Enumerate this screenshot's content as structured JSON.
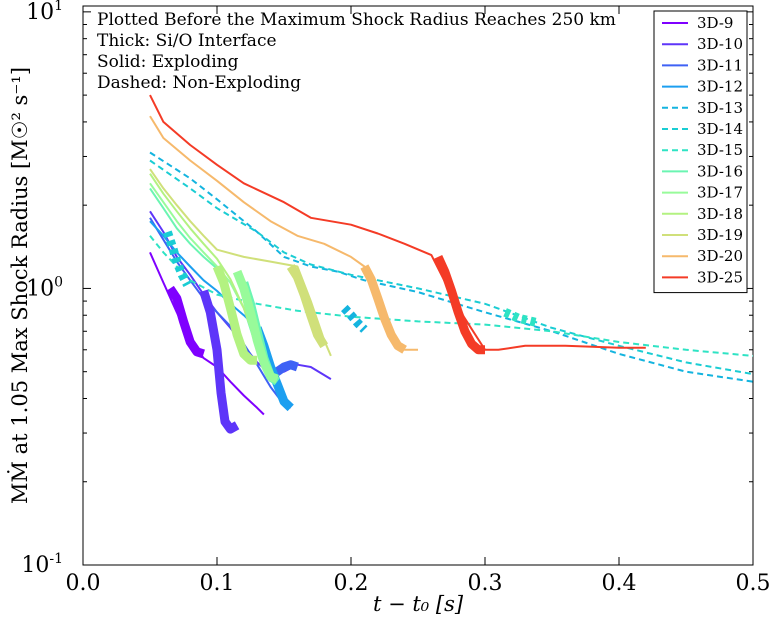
{
  "chart_data": {
    "type": "line",
    "xlabel": "t − t₀ [s]",
    "ylabel": "MṀ at 1.05 Max Shock Radius [M☉² s⁻¹]",
    "xlim": [
      0.0,
      0.5
    ],
    "ylim": [
      0.1,
      10.5
    ],
    "yscale": "log",
    "xticks": [
      "0.0",
      "0.1",
      "0.2",
      "0.3",
      "0.4",
      "0.5"
    ],
    "yticks": [
      {
        "value": 0.1,
        "base": "10",
        "exp": "-1"
      },
      {
        "value": 1,
        "base": "10",
        "exp": "0"
      },
      {
        "value": 10,
        "base": "10",
        "exp": "1"
      }
    ],
    "annotations": [
      "Plotted Before the Maximum Shock Radius Reaches 250 km",
      "Thick: Si/O Interface",
      "Solid: Exploding",
      "Dashed: Non-Exploding"
    ],
    "legend_position": "top-right",
    "grid": false,
    "series": [
      {
        "name": "3D-9",
        "color": "#7f00ff",
        "style": "solid",
        "x": [
          0.05,
          0.06,
          0.07,
          0.08,
          0.09,
          0.1,
          0.11,
          0.12,
          0.13,
          0.135
        ],
        "y": [
          1.35,
          1.05,
          0.82,
          0.65,
          0.56,
          0.52,
          0.46,
          0.41,
          0.37,
          0.35
        ],
        "thick": {
          "x": [
            0.065,
            0.07,
            0.075,
            0.08,
            0.085,
            0.09
          ],
          "y": [
            1.0,
            0.92,
            0.76,
            0.64,
            0.59,
            0.58
          ]
        }
      },
      {
        "name": "3D-10",
        "color": "#5e35f9",
        "style": "solid",
        "x": [
          0.05,
          0.06,
          0.07,
          0.08,
          0.09,
          0.1,
          0.11,
          0.12,
          0.13,
          0.14,
          0.15,
          0.16,
          0.17,
          0.185
        ],
        "y": [
          1.9,
          1.6,
          1.3,
          1.12,
          0.95,
          0.82,
          0.72,
          0.62,
          0.54,
          0.49,
          0.5,
          0.53,
          0.52,
          0.47
        ],
        "thick": {
          "x": [
            0.09,
            0.095,
            0.1,
            0.103,
            0.106,
            0.11,
            0.115
          ],
          "y": [
            0.98,
            0.82,
            0.6,
            0.42,
            0.33,
            0.31,
            0.32
          ]
        }
      },
      {
        "name": "3D-11",
        "color": "#3f62f5",
        "style": "solid",
        "x": [
          0.05,
          0.06,
          0.07,
          0.08,
          0.09,
          0.1,
          0.11,
          0.12,
          0.13,
          0.14,
          0.15,
          0.155
        ],
        "y": [
          1.8,
          1.5,
          1.25,
          1.07,
          0.92,
          0.82,
          0.73,
          0.63,
          0.53,
          0.44,
          0.38,
          0.37
        ],
        "thick": {
          "x": [
            0.14,
            0.145,
            0.15,
            0.155,
            0.16
          ],
          "y": [
            0.5,
            0.5,
            0.52,
            0.53,
            0.52
          ]
        }
      },
      {
        "name": "3D-12",
        "color": "#1c9ff0",
        "style": "solid",
        "x": [
          0.05,
          0.06,
          0.07,
          0.08,
          0.09,
          0.1,
          0.11,
          0.12,
          0.13
        ],
        "y": [
          1.75,
          1.55,
          1.35,
          1.2,
          1.07,
          0.98,
          0.88,
          0.8,
          0.72
        ],
        "thick": {
          "x": [
            0.13,
            0.135,
            0.14,
            0.145,
            0.15,
            0.155
          ],
          "y": [
            0.72,
            0.62,
            0.52,
            0.45,
            0.39,
            0.37
          ]
        }
      },
      {
        "name": "3D-13",
        "color": "#14b4df",
        "style": "dashed",
        "x": [
          0.05,
          0.08,
          0.1,
          0.13,
          0.15,
          0.17,
          0.19,
          0.21,
          0.25,
          0.3,
          0.35,
          0.4,
          0.45,
          0.5
        ],
        "y": [
          3.1,
          2.5,
          2.1,
          1.6,
          1.3,
          1.2,
          1.15,
          1.07,
          0.97,
          0.82,
          0.7,
          0.58,
          0.5,
          0.46
        ],
        "thick": {
          "x": [
            0.195,
            0.2,
            0.205,
            0.21
          ],
          "y": [
            0.85,
            0.8,
            0.75,
            0.71
          ]
        }
      },
      {
        "name": "3D-14",
        "color": "#1acdd3",
        "style": "dashed",
        "x": [
          0.05,
          0.08,
          0.1,
          0.13,
          0.15,
          0.17,
          0.2,
          0.25,
          0.3,
          0.35,
          0.4,
          0.45,
          0.5
        ],
        "y": [
          2.9,
          2.3,
          1.95,
          1.6,
          1.35,
          1.22,
          1.12,
          1.0,
          0.88,
          0.72,
          0.62,
          0.54,
          0.49
        ],
        "thick": {
          "x": [
            0.063,
            0.067,
            0.07,
            0.074,
            0.078
          ],
          "y": [
            1.6,
            1.4,
            1.25,
            1.12,
            1.03
          ]
        }
      },
      {
        "name": "3D-15",
        "color": "#2ee3c4",
        "style": "dashed",
        "x": [
          0.05,
          0.06,
          0.07,
          0.08,
          0.1,
          0.13,
          0.16,
          0.2,
          0.25,
          0.3,
          0.35,
          0.4,
          0.45,
          0.5
        ],
        "y": [
          1.55,
          1.35,
          1.2,
          1.07,
          0.95,
          0.88,
          0.83,
          0.79,
          0.76,
          0.74,
          0.7,
          0.64,
          0.6,
          0.57
        ],
        "thick": {
          "x": [
            0.315,
            0.32,
            0.325,
            0.33,
            0.335,
            0.34
          ],
          "y": [
            0.82,
            0.8,
            0.78,
            0.77,
            0.76,
            0.75
          ]
        }
      },
      {
        "name": "3D-16",
        "color": "#6bf5b2",
        "style": "solid",
        "x": [
          0.05,
          0.06,
          0.07,
          0.08,
          0.09,
          0.1,
          0.11,
          0.12,
          0.13,
          0.14
        ],
        "y": [
          2.3,
          1.95,
          1.65,
          1.45,
          1.3,
          1.18,
          1.05,
          0.85,
          0.6,
          0.46
        ],
        "thick": {
          "x": [
            0.12,
            0.125,
            0.13,
            0.135,
            0.14,
            0.145
          ],
          "y": [
            1.05,
            0.88,
            0.7,
            0.56,
            0.48,
            0.46
          ]
        }
      },
      {
        "name": "3D-17",
        "color": "#98fb9a",
        "style": "solid",
        "x": [
          0.05,
          0.06,
          0.07,
          0.08,
          0.09,
          0.1,
          0.11,
          0.12,
          0.13,
          0.14
        ],
        "y": [
          2.4,
          2.05,
          1.75,
          1.52,
          1.35,
          1.2,
          1.05,
          0.85,
          0.65,
          0.5
        ],
        "thick": {
          "x": [
            0.115,
            0.12,
            0.125,
            0.13,
            0.135,
            0.14,
            0.145
          ],
          "y": [
            1.15,
            1.0,
            0.82,
            0.65,
            0.54,
            0.48,
            0.47
          ]
        }
      },
      {
        "name": "3D-18",
        "color": "#b3f281",
        "style": "solid",
        "x": [
          0.05,
          0.06,
          0.07,
          0.08,
          0.09,
          0.1,
          0.11,
          0.12,
          0.13
        ],
        "y": [
          2.6,
          2.2,
          1.9,
          1.65,
          1.45,
          1.28,
          1.08,
          0.85,
          0.62
        ],
        "thick": {
          "x": [
            0.1,
            0.105,
            0.11,
            0.115,
            0.12,
            0.125,
            0.13
          ],
          "y": [
            1.2,
            1.05,
            0.85,
            0.68,
            0.58,
            0.55,
            0.55
          ]
        }
      },
      {
        "name": "3D-19",
        "color": "#d0e07a",
        "style": "solid",
        "x": [
          0.05,
          0.06,
          0.07,
          0.08,
          0.09,
          0.1,
          0.12,
          0.14,
          0.16,
          0.17,
          0.18,
          0.185
        ],
        "y": [
          2.7,
          2.3,
          2.0,
          1.75,
          1.55,
          1.38,
          1.3,
          1.25,
          1.2,
          0.9,
          0.65,
          0.57
        ],
        "thick": {
          "x": [
            0.155,
            0.16,
            0.165,
            0.17,
            0.175,
            0.18
          ],
          "y": [
            1.2,
            1.1,
            0.95,
            0.8,
            0.68,
            0.62
          ]
        }
      },
      {
        "name": "3D-20",
        "color": "#f6b96c",
        "style": "solid",
        "x": [
          0.05,
          0.06,
          0.08,
          0.1,
          0.12,
          0.14,
          0.16,
          0.18,
          0.2,
          0.21,
          0.22,
          0.23,
          0.24,
          0.25
        ],
        "y": [
          4.2,
          3.5,
          2.9,
          2.45,
          2.05,
          1.75,
          1.55,
          1.45,
          1.3,
          1.2,
          0.95,
          0.7,
          0.6,
          0.6
        ],
        "thick": {
          "x": [
            0.21,
            0.215,
            0.22,
            0.225,
            0.23,
            0.235,
            0.24
          ],
          "y": [
            1.2,
            1.08,
            0.92,
            0.78,
            0.68,
            0.62,
            0.6
          ]
        }
      },
      {
        "name": "3D-25",
        "color": "#f43b26",
        "style": "solid",
        "x": [
          0.05,
          0.06,
          0.08,
          0.1,
          0.12,
          0.15,
          0.17,
          0.2,
          0.22,
          0.24,
          0.26,
          0.28,
          0.3,
          0.31,
          0.33,
          0.36,
          0.4,
          0.42
        ],
        "y": [
          5.0,
          4.0,
          3.3,
          2.8,
          2.4,
          2.05,
          1.8,
          1.7,
          1.58,
          1.45,
          1.32,
          0.85,
          0.6,
          0.6,
          0.62,
          0.62,
          0.61,
          0.61
        ],
        "thick": {
          "x": [
            0.265,
            0.27,
            0.275,
            0.28,
            0.285,
            0.29,
            0.295,
            0.3
          ],
          "y": [
            1.3,
            1.15,
            0.98,
            0.82,
            0.7,
            0.63,
            0.6,
            0.6
          ]
        }
      }
    ]
  }
}
